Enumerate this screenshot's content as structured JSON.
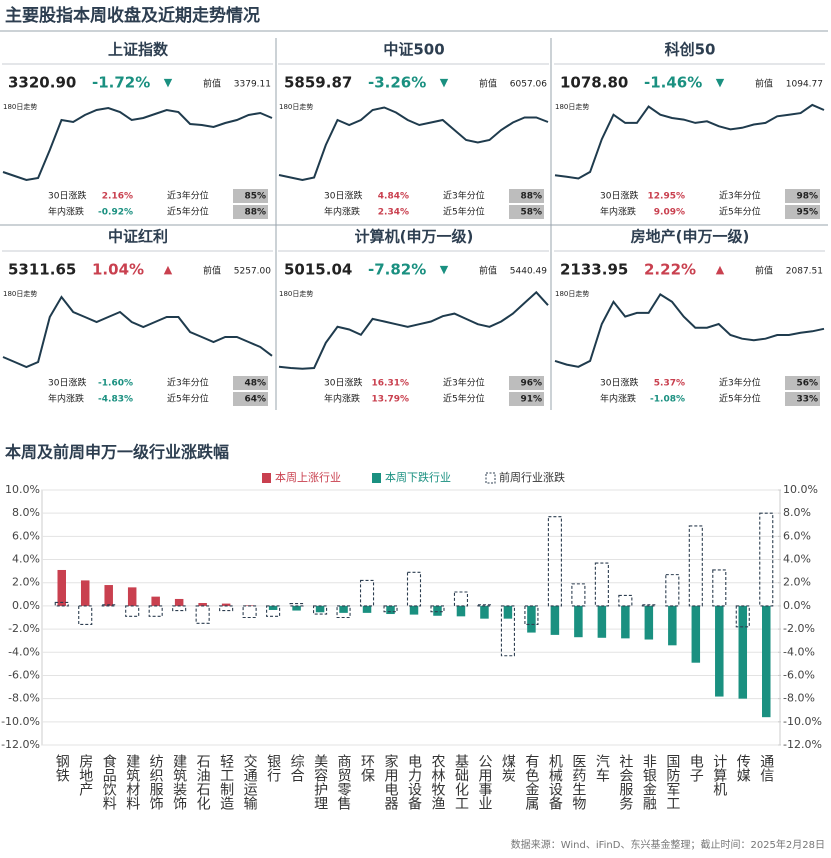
{
  "title": "主要股指本周收盘及近期走势情况",
  "panels": [
    {
      "name": "上证指数",
      "close": "3320.90",
      "change": "-1.72%",
      "prev_label": "前值",
      "prev": "3379.11",
      "trend_label": "180日走势",
      "trend": {
        "type": "line",
        "values": [
          2780,
          2740,
          2700,
          2720,
          3000,
          3300,
          3280,
          3350,
          3400,
          3420,
          3380,
          3300,
          3320,
          3360,
          3400,
          3380,
          3260,
          3250,
          3230,
          3270,
          3300,
          3350,
          3370,
          3320
        ],
        "ylim": [
          2650,
          3500
        ]
      },
      "stats": [
        {
          "label": "30日涨跌",
          "value": "2.16%",
          "rank_label": "近3年分位",
          "rank": "85%"
        },
        {
          "label": "年内涨跌",
          "value": "-0.92%",
          "rank_label": "近5年分位",
          "rank": "88%"
        }
      ]
    },
    {
      "name": "中证500",
      "close": "5859.87",
      "change": "-3.26%",
      "prev_label": "前值",
      "prev": "6057.06",
      "trend_label": "180日走势",
      "trend": {
        "type": "line",
        "values": [
          4800,
          4750,
          4700,
          4750,
          5400,
          5900,
          5800,
          5900,
          6100,
          6150,
          6050,
          5900,
          5800,
          5850,
          5900,
          5700,
          5500,
          5450,
          5500,
          5700,
          5850,
          5950,
          5950,
          5860
        ],
        "ylim": [
          4600,
          6300
        ]
      },
      "stats": [
        {
          "label": "30日涨跌",
          "value": "4.84%",
          "rank_label": "近3年分位",
          "rank": "88%"
        },
        {
          "label": "年内涨跌",
          "value": "2.34%",
          "rank_label": "近5年分位",
          "rank": "58%"
        }
      ]
    },
    {
      "name": "科创50",
      "close": "1078.80",
      "change": "-1.46%",
      "prev_label": "前值",
      "prev": "1094.77",
      "trend_label": "180日走势",
      "trend": {
        "type": "line",
        "values": [
          680,
          670,
          660,
          700,
          900,
          1050,
          1000,
          1000,
          1100,
          1050,
          1030,
          1020,
          1000,
          1010,
          980,
          960,
          970,
          990,
          1000,
          1040,
          1050,
          1060,
          1110,
          1079
        ],
        "ylim": [
          620,
          1140
        ]
      },
      "stats": [
        {
          "label": "30日涨跌",
          "value": "12.95%",
          "rank_label": "近3年分位",
          "rank": "98%"
        },
        {
          "label": "年内涨跌",
          "value": "9.09%",
          "rank_label": "近5年分位",
          "rank": "95%"
        }
      ]
    },
    {
      "name": "中证红利",
      "close": "5311.65",
      "change": "1.04%",
      "prev_label": "前值",
      "prev": "5257.00",
      "trend_label": "180日走势",
      "trend": {
        "type": "line",
        "values": [
          5300,
          5250,
          5200,
          5250,
          5700,
          5900,
          5750,
          5700,
          5650,
          5700,
          5750,
          5650,
          5600,
          5650,
          5700,
          5700,
          5550,
          5500,
          5450,
          5500,
          5500,
          5450,
          5400,
          5312
        ],
        "ylim": [
          5150,
          6000
        ]
      },
      "stats": [
        {
          "label": "30日涨跌",
          "value": "-1.60%",
          "rank_label": "近3年分位",
          "rank": "48%"
        },
        {
          "label": "年内涨跌",
          "value": "-4.83%",
          "rank_label": "近5年分位",
          "rank": "64%"
        }
      ]
    },
    {
      "name": "计算机(申万一级)",
      "close": "5015.04",
      "change": "-7.82%",
      "prev_label": "前值",
      "prev": "5440.49",
      "trend_label": "180日走势",
      "trend": {
        "type": "line",
        "values": [
          2700,
          2650,
          2620,
          2650,
          3600,
          4200,
          4100,
          3900,
          4500,
          4400,
          4300,
          4200,
          4300,
          4400,
          4600,
          4700,
          4500,
          4300,
          4200,
          4400,
          4700,
          5100,
          5500,
          5015
        ],
        "ylim": [
          2500,
          5700
        ]
      },
      "stats": [
        {
          "label": "30日涨跌",
          "value": "16.31%",
          "rank_label": "近3年分位",
          "rank": "96%"
        },
        {
          "label": "年内涨跌",
          "value": "13.79%",
          "rank_label": "近5年分位",
          "rank": "91%"
        }
      ]
    },
    {
      "name": "房地产(申万一级)",
      "close": "2133.95",
      "change": "2.22%",
      "prev_label": "前值",
      "prev": "2087.51",
      "trend_label": "180日走势",
      "trend": {
        "type": "line",
        "values": [
          1700,
          1650,
          1620,
          1700,
          2200,
          2500,
          2300,
          2350,
          2350,
          2600,
          2500,
          2300,
          2150,
          2150,
          2200,
          2050,
          2000,
          1980,
          2000,
          2050,
          2050,
          2080,
          2100,
          2134
        ],
        "ylim": [
          1550,
          2700
        ]
      },
      "stats": [
        {
          "label": "30日涨跌",
          "value": "5.37%",
          "rank_label": "近3年分位",
          "rank": "56%"
        },
        {
          "label": "年内涨跌",
          "value": "-1.08%",
          "rank_label": "近5年分位",
          "rank": "33%"
        }
      ]
    }
  ],
  "chart_data": {
    "type": "bar",
    "title": "本周及前周申万一级行业涨跌幅",
    "categories": [
      "钢铁",
      "房地产",
      "食品饮料",
      "建筑材料",
      "纺织服饰",
      "建筑装饰",
      "石油石化",
      "轻工制造",
      "交通运输",
      "银行",
      "综合",
      "美容护理",
      "商贸零售",
      "环保",
      "家用电器",
      "电力设备",
      "农林牧渔",
      "基础化工",
      "公用事业",
      "煤炭",
      "有色金属",
      "机械设备",
      "医药生物",
      "汽车",
      "社会服务",
      "非银金融",
      "国防军工",
      "电子",
      "计算机",
      "传媒",
      "通信"
    ],
    "series": [
      {
        "name": "本周上涨行业",
        "color": "#c9404f",
        "values": [
          3.1,
          2.2,
          1.8,
          1.6,
          0.8,
          0.6,
          0.25,
          0.2,
          0.05,
          null,
          null,
          null,
          null,
          null,
          null,
          null,
          null,
          null,
          null,
          null,
          null,
          null,
          null,
          null,
          null,
          null,
          null,
          null,
          null,
          null,
          null
        ]
      },
      {
        "name": "本周下跌行业",
        "color": "#1a9080",
        "values": [
          null,
          null,
          null,
          null,
          null,
          null,
          null,
          null,
          null,
          -0.35,
          -0.4,
          -0.55,
          -0.6,
          -0.6,
          -0.7,
          -0.75,
          -0.85,
          -0.9,
          -1.1,
          -1.1,
          -2.3,
          -2.5,
          -2.7,
          -2.75,
          -2.8,
          -2.9,
          -3.4,
          -4.9,
          -7.82,
          -8.0,
          -9.6
        ]
      },
      {
        "name": "前周行业涨跌",
        "color": "#2d3e50",
        "dashed": true,
        "values": [
          0.3,
          -1.6,
          0.1,
          -0.9,
          -0.9,
          -0.4,
          -1.5,
          -0.4,
          -1.0,
          -0.9,
          0.2,
          -0.7,
          -1.0,
          2.2,
          -0.5,
          2.9,
          -0.5,
          1.2,
          0.1,
          -4.3,
          -1.6,
          7.7,
          1.9,
          3.7,
          0.9,
          0.1,
          2.7,
          6.9,
          3.1,
          -1.8,
          8.0
        ]
      }
    ],
    "ylim": [
      -12,
      10
    ],
    "yticks": [
      {
        "value": -12,
        "label": "-12.0%"
      },
      {
        "value": -10,
        "label": "-10.0%"
      },
      {
        "value": -8,
        "label": "-8.0%"
      },
      {
        "value": -6,
        "label": "-6.0%"
      },
      {
        "value": -4,
        "label": "-4.0%"
      },
      {
        "value": -2,
        "label": "-2.0%"
      },
      {
        "value": 0,
        "label": "0.0%"
      },
      {
        "value": 2,
        "label": "2.0%"
      },
      {
        "value": 4,
        "label": "4.0%"
      },
      {
        "value": 6,
        "label": "6.0%"
      },
      {
        "value": 8,
        "label": "8.0%"
      },
      {
        "value": 10,
        "label": "10.0%"
      }
    ],
    "y2lim": [
      -12,
      10
    ],
    "y2ticks": [
      {
        "value": -12,
        "label": "-12.0%"
      },
      {
        "value": -10,
        "label": "-10.0%"
      },
      {
        "value": -8,
        "label": "-8.0%"
      },
      {
        "value": -6,
        "label": "-6.0%"
      },
      {
        "value": -4,
        "label": "-4.0%"
      },
      {
        "value": -2,
        "label": "-2.0%"
      },
      {
        "value": 0,
        "label": "0.0%"
      },
      {
        "value": 2,
        "label": "2.0%"
      },
      {
        "value": 4,
        "label": "4.0%"
      },
      {
        "value": 6,
        "label": "6.0%"
      },
      {
        "value": 8,
        "label": "8.0%"
      },
      {
        "value": 10,
        "label": "10.0%"
      }
    ],
    "grid": true,
    "legend": "top"
  },
  "source": "数据来源：Wind、iFinD、东兴基金整理；截止时间：2025年2月28日"
}
